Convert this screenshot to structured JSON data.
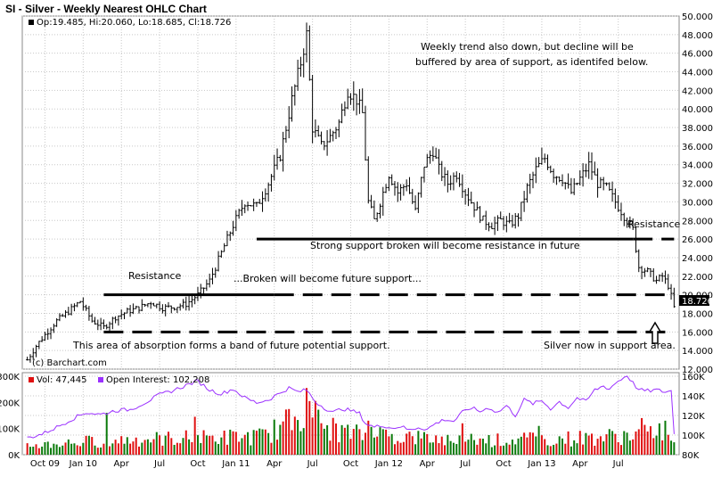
{
  "chart_data": {
    "type": "ohlc",
    "title": "SI - Silver - Weekly Nearest OHLC Chart",
    "info_line": "Op:19.485, Hi:20.060, Lo:18.685, Cl:18.726",
    "last_price_label": "18.726",
    "last_close": 18.726,
    "copyright": "(c) Barchart.com",
    "x_tick_labels": [
      "Oct 09",
      "Jan 10",
      "Apr",
      "Jul",
      "Oct",
      "Jan 11",
      "Apr",
      "Jul",
      "Oct",
      "Jan 12",
      "Apr",
      "Jul",
      "Oct",
      "Jan 13",
      "Apr",
      "Jul"
    ],
    "price_axis": {
      "ylim": [
        12,
        50
      ],
      "ticks": [
        "12.000",
        "14.000",
        "16.000",
        "18.000",
        "20.000",
        "22.000",
        "24.000",
        "26.000",
        "28.000",
        "30.000",
        "32.000",
        "34.000",
        "36.000",
        "38.000",
        "40.000",
        "42.000",
        "44.000",
        "46.000",
        "48.000",
        "50.000"
      ]
    },
    "price_anchors": [
      [
        0,
        13
      ],
      [
        3,
        14.5
      ],
      [
        6,
        15.7
      ],
      [
        10,
        17.2
      ],
      [
        14,
        18.2
      ],
      [
        18,
        19.3
      ],
      [
        22,
        17.2
      ],
      [
        26,
        16.5
      ],
      [
        30,
        17.6
      ],
      [
        34,
        18.2
      ],
      [
        38,
        18.6
      ],
      [
        42,
        19.2
      ],
      [
        46,
        18.6
      ],
      [
        50,
        18.7
      ],
      [
        54,
        19
      ],
      [
        58,
        20
      ],
      [
        62,
        21.5
      ],
      [
        66,
        24.5
      ],
      [
        70,
        27.5
      ],
      [
        74,
        30
      ],
      [
        78,
        29.5
      ],
      [
        82,
        32
      ],
      [
        86,
        35
      ],
      [
        90,
        41
      ],
      [
        93,
        45
      ],
      [
        95,
        48
      ],
      [
        97,
        38
      ],
      [
        100,
        36
      ],
      [
        103,
        37
      ],
      [
        106,
        38.5
      ],
      [
        109,
        42
      ],
      [
        112,
        41
      ],
      [
        114,
        39.5
      ],
      [
        116,
        30
      ],
      [
        118,
        28
      ],
      [
        120,
        30
      ],
      [
        123,
        33
      ],
      [
        126,
        31
      ],
      [
        129,
        32
      ],
      [
        132,
        29
      ],
      [
        135,
        34
      ],
      [
        138,
        35.5
      ],
      [
        140,
        33.5
      ],
      [
        143,
        32
      ],
      [
        146,
        33
      ],
      [
        149,
        31
      ],
      [
        152,
        29.5
      ],
      [
        155,
        28
      ],
      [
        158,
        27.5
      ],
      [
        161,
        28
      ],
      [
        164,
        27.5
      ],
      [
        167,
        28.5
      ],
      [
        170,
        31.5
      ],
      [
        173,
        33.5
      ],
      [
        176,
        34.7
      ],
      [
        179,
        33
      ],
      [
        182,
        32.5
      ],
      [
        185,
        31
      ],
      [
        188,
        32.5
      ],
      [
        191,
        34
      ],
      [
        194,
        32
      ],
      [
        197,
        31.5
      ],
      [
        200,
        30
      ],
      [
        203,
        28.5
      ],
      [
        206,
        27
      ],
      [
        208,
        23
      ],
      [
        211,
        22.5
      ],
      [
        214,
        21.5
      ],
      [
        216,
        22
      ],
      [
        218,
        21
      ],
      [
        220,
        18.7
      ]
    ],
    "lower_panel": {
      "volume_label": "Vol: 47,445",
      "open_interest_label": "Open Interest: 102,208",
      "volume_axis": {
        "ylim": [
          0,
          300000
        ],
        "ticks": [
          "0K",
          "100K",
          "200K",
          "300K"
        ]
      },
      "open_interest_axis": {
        "ylim": [
          80000,
          160000
        ],
        "ticks": [
          "80K",
          "100K",
          "120K",
          "140K",
          "160K"
        ]
      },
      "series_colors": {
        "volume_up": "#0a7a0a",
        "volume_down": "#e01010",
        "open_interest": "#9b30ff"
      },
      "open_interest_anchors": [
        [
          0,
          97000
        ],
        [
          5,
          101000
        ],
        [
          10,
          108000
        ],
        [
          15,
          116000
        ],
        [
          20,
          123000
        ],
        [
          25,
          121000
        ],
        [
          30,
          125000
        ],
        [
          35,
          126000
        ],
        [
          40,
          133000
        ],
        [
          45,
          141000
        ],
        [
          50,
          146000
        ],
        [
          55,
          152000
        ],
        [
          58,
          155000
        ],
        [
          62,
          146000
        ],
        [
          66,
          142000
        ],
        [
          70,
          147000
        ],
        [
          74,
          138000
        ],
        [
          78,
          133000
        ],
        [
          82,
          136000
        ],
        [
          86,
          143000
        ],
        [
          89,
          148000
        ],
        [
          92,
          144000
        ],
        [
          95,
          146000
        ],
        [
          98,
          134000
        ],
        [
          101,
          128000
        ],
        [
          104,
          123000
        ],
        [
          107,
          127000
        ],
        [
          110,
          125000
        ],
        [
          113,
          122000
        ],
        [
          115,
          112000
        ],
        [
          118,
          108000
        ],
        [
          121,
          110000
        ],
        [
          124,
          107000
        ],
        [
          127,
          109000
        ],
        [
          130,
          105000
        ],
        [
          133,
          108000
        ],
        [
          136,
          106000
        ],
        [
          139,
          112000
        ],
        [
          142,
          116000
        ],
        [
          145,
          114000
        ],
        [
          148,
          123000
        ],
        [
          151,
          128000
        ],
        [
          154,
          124000
        ],
        [
          157,
          128000
        ],
        [
          160,
          123000
        ],
        [
          163,
          130000
        ],
        [
          166,
          120000
        ],
        [
          169,
          136000
        ],
        [
          172,
          132000
        ],
        [
          175,
          135000
        ],
        [
          178,
          127000
        ],
        [
          181,
          134000
        ],
        [
          184,
          128000
        ],
        [
          187,
          138000
        ],
        [
          190,
          134000
        ],
        [
          193,
          146000
        ],
        [
          196,
          150000
        ],
        [
          198,
          147000
        ],
        [
          200,
          153000
        ],
        [
          202,
          157000
        ],
        [
          204,
          161000
        ],
        [
          206,
          153000
        ],
        [
          208,
          146000
        ],
        [
          211,
          145000
        ],
        [
          214,
          146000
        ],
        [
          217,
          144000
        ],
        [
          219,
          145000
        ],
        [
          220,
          102208
        ]
      ],
      "volume_anchors": [
        [
          0,
          35000
        ],
        [
          20,
          50000
        ],
        [
          40,
          60000
        ],
        [
          60,
          65000
        ],
        [
          80,
          70000
        ],
        [
          90,
          130000
        ],
        [
          95,
          200000
        ],
        [
          100,
          110000
        ],
        [
          110,
          80000
        ],
        [
          120,
          75000
        ],
        [
          140,
          60000
        ],
        [
          160,
          55000
        ],
        [
          180,
          60000
        ],
        [
          200,
          70000
        ],
        [
          210,
          80000
        ],
        [
          215,
          100000
        ],
        [
          220,
          47445
        ]
      ],
      "volume_spikes": [
        [
          27,
          160000
        ],
        [
          57,
          145000
        ],
        [
          95,
          255000
        ],
        [
          96,
          205000
        ],
        [
          116,
          130000
        ],
        [
          120,
          105000
        ],
        [
          148,
          120000
        ],
        [
          174,
          110000
        ],
        [
          209,
          140000
        ],
        [
          217,
          130000
        ]
      ]
    },
    "support_resistance_lines": [
      {
        "style": "solid",
        "from": 26,
        "to": 84,
        "price": 20
      },
      {
        "style": "dashed",
        "from": 84,
        "to": 220,
        "price": 20
      },
      {
        "style": "dashed",
        "from": 26,
        "to": 220,
        "price": 16
      },
      {
        "style": "solid",
        "from": 78,
        "to": 206,
        "price": 26
      },
      {
        "style": "dashed",
        "from": 206,
        "to": 220,
        "price": 26
      }
    ],
    "annotations": {
      "weekly_trend_1": "Weekly trend also down, but decline will be",
      "weekly_trend_2": "buffered by area of support, as identifed below.",
      "resistance_right": "Resistance",
      "strong_support": "Strong support broken will become resistance in future",
      "resistance_left": "Resistance",
      "broken_support": "...Broken will become future support...",
      "absorption": "This area of absorption forms a band of future potential support.",
      "silver_now": "Silver now in support area."
    },
    "grid": true,
    "colors": {
      "price_bar": "#000000",
      "grid": "#c8c8c8",
      "panel_border": "#888888"
    }
  }
}
